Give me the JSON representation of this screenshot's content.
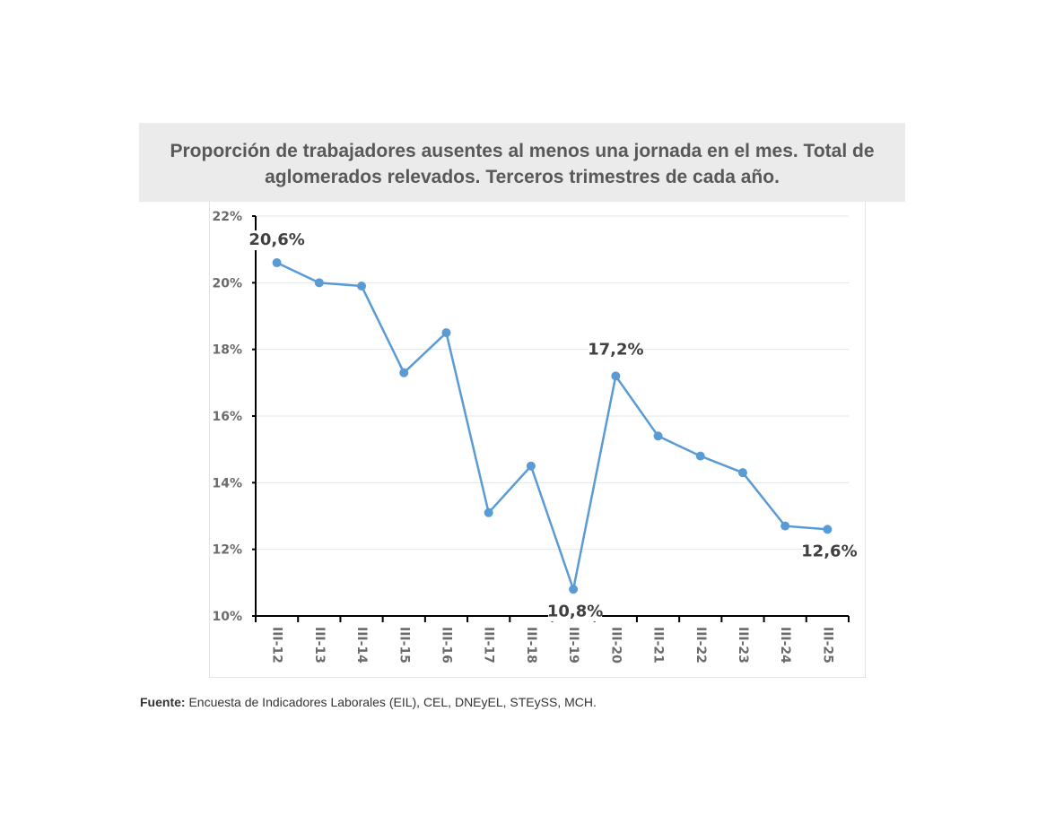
{
  "title": "Proporción de trabajadores ausentes al menos una jornada en el mes. Total de aglomerados relevados. Terceros trimestres de cada año.",
  "source": {
    "label": "Fuente:",
    "text": " Encuesta de Indicadores Laborales (EIL), CEL, DNEyEL, STEySS, MCH."
  },
  "chart_data": {
    "type": "line",
    "title": "Proporción de trabajadores ausentes al menos una jornada en el mes. Total de aglomerados relevados. Terceros trimestres de cada año.",
    "xlabel": "",
    "ylabel": "",
    "categories": [
      "III-12",
      "III-13",
      "III-14",
      "III-15",
      "III-16",
      "III-17",
      "III-18",
      "III-19",
      "III-20",
      "III-21",
      "III-22",
      "III-23",
      "III-24",
      "III-25"
    ],
    "series": [
      {
        "values": [
          20.6,
          20.0,
          19.9,
          17.3,
          18.5,
          13.1,
          14.5,
          10.8,
          17.2,
          15.4,
          14.8,
          14.3,
          12.7,
          12.6
        ],
        "color": "#5b9bd5"
      }
    ],
    "data_labels": [
      {
        "index": 0,
        "text": "20,6%"
      },
      {
        "index": 7,
        "text": "10,8%"
      },
      {
        "index": 8,
        "text": "17,2%"
      },
      {
        "index": 13,
        "text": "12,6%"
      }
    ],
    "ylim": [
      10,
      22
    ],
    "yticks": [
      10,
      12,
      14,
      16,
      18,
      20,
      22
    ],
    "ytick_labels": [
      "10%",
      "12%",
      "14%",
      "16%",
      "18%",
      "20%",
      "22%"
    ],
    "grid": true,
    "legend": "none"
  }
}
